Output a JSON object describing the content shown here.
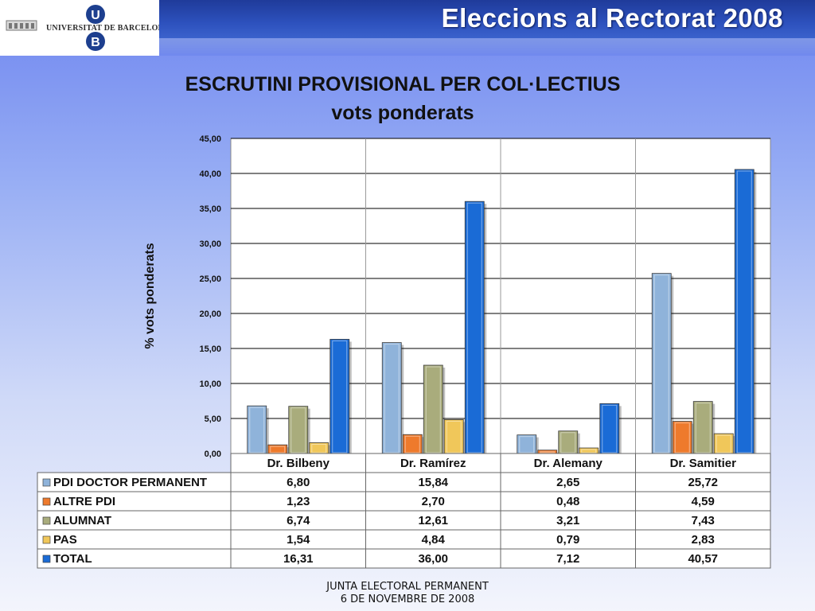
{
  "header": {
    "university": "UNIVERSITAT DE BARCELONA",
    "logo_letters": [
      "U",
      "B"
    ],
    "banner_title": "Eleccions al Rectorat 2008"
  },
  "colors": {
    "PDI DOCTOR PERMANENT": "#8fb3da",
    "ALTRE PDI": "#ee7a2c",
    "ALUMNAT": "#a9ac7c",
    "PAS": "#f0c75a",
    "TOTAL": "#1a6bd6"
  },
  "chart_data": {
    "type": "bar",
    "title": "ESCRUTINI PROVISIONAL PER COL·LECTIUS",
    "subtitle": "vots ponderats",
    "ylabel": "% vots ponderats",
    "xlabel": "",
    "ylim": [
      0,
      45
    ],
    "yticks": [
      "0,00",
      "5,00",
      "10,00",
      "15,00",
      "20,00",
      "25,00",
      "30,00",
      "35,00",
      "40,00",
      "45,00"
    ],
    "categories": [
      "Dr. Bilbeny",
      "Dr. Ramírez",
      "Dr. Alemany",
      "Dr. Samitier"
    ],
    "series": [
      {
        "name": "PDI DOCTOR PERMANENT",
        "values": [
          6.8,
          15.84,
          2.65,
          25.72
        ],
        "labels": [
          "6,80",
          "15,84",
          "2,65",
          "25,72"
        ]
      },
      {
        "name": "ALTRE PDI",
        "values": [
          1.23,
          2.7,
          0.48,
          4.59
        ],
        "labels": [
          "1,23",
          "2,70",
          "0,48",
          "4,59"
        ]
      },
      {
        "name": "ALUMNAT",
        "values": [
          6.74,
          12.61,
          3.21,
          7.43
        ],
        "labels": [
          "6,74",
          "12,61",
          "3,21",
          "7,43"
        ]
      },
      {
        "name": "PAS",
        "values": [
          1.54,
          4.84,
          0.79,
          2.83
        ],
        "labels": [
          "1,54",
          "4,84",
          "0,79",
          "2,83"
        ]
      },
      {
        "name": "TOTAL",
        "values": [
          16.31,
          36.0,
          7.12,
          40.57
        ],
        "labels": [
          "16,31",
          "36,00",
          "7,12",
          "40,57"
        ]
      }
    ],
    "grid": true,
    "legend": "data table below chart"
  },
  "footer": {
    "line1": "JUNTA ELECTORAL PERMANENT",
    "line2": "6 DE NOVEMBRE DE 2008"
  }
}
